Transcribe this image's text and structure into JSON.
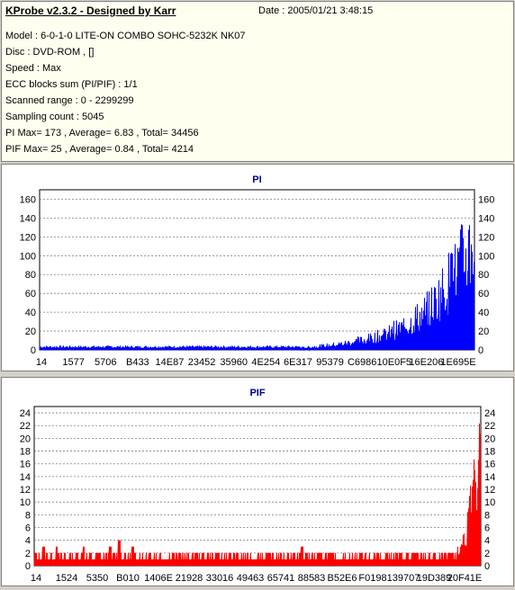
{
  "header": {
    "title": "KProbe v2.3.2 - Designed by Karr",
    "date": "Date : 2005/01/21 3:48:15",
    "lines": [
      "Model : 6-0-1-0 LITE-ON COMBO SOHC-5232K NK07",
      "Disc : DVD-ROM ,  []",
      "Speed : Max",
      "ECC blocks sum (PI/PIF) : 1/1",
      "Scanned range : 0 - 2299299",
      "Sampling count : 5045",
      "PI Max= 173 , Average= 6.83 , Total= 34456",
      "PIF Max= 25 , Average= 0.84 , Total= 4214"
    ]
  },
  "chart_data": [
    {
      "type": "bar",
      "title": "PI",
      "color": "#0000ff",
      "ylim": [
        0,
        170
      ],
      "yticks": [
        0,
        20,
        40,
        60,
        80,
        100,
        120,
        140,
        160
      ],
      "xtick_labels": [
        "14",
        "1577",
        "5706",
        "B433",
        "14E87",
        "23452",
        "35960",
        "4E254",
        "6E317",
        "95379",
        "C6986",
        "10E0F5",
        "16E206",
        "1E695E"
      ],
      "x_range": [
        0,
        2299299
      ],
      "baseline_until": 0.6,
      "baseline_value": 2,
      "envelope": [
        [
          0.6,
          3
        ],
        [
          0.65,
          6
        ],
        [
          0.7,
          10
        ],
        [
          0.75,
          16
        ],
        [
          0.8,
          25
        ],
        [
          0.85,
          40
        ],
        [
          0.88,
          55
        ],
        [
          0.91,
          75
        ],
        [
          0.94,
          105
        ],
        [
          0.97,
          135
        ],
        [
          1.0,
          173
        ]
      ],
      "max": 173
    },
    {
      "type": "bar",
      "title": "PIF",
      "color": "#ff0000",
      "ylim": [
        0,
        25
      ],
      "yticks": [
        0,
        2,
        4,
        6,
        8,
        10,
        12,
        14,
        16,
        18,
        20,
        22,
        24
      ],
      "xtick_labels": [
        "14",
        "1524",
        "5350",
        "B010",
        "1406E",
        "21928",
        "33016",
        "49463",
        "65741",
        "88583",
        "B52E6",
        "F0198",
        "139707",
        "19D389",
        "20F41E"
      ],
      "x_range": [
        0,
        2299299
      ],
      "baseline_value": 1,
      "spikes": [
        [
          0.02,
          3
        ],
        [
          0.05,
          3
        ],
        [
          0.08,
          2
        ],
        [
          0.11,
          3
        ],
        [
          0.14,
          2
        ],
        [
          0.17,
          3
        ],
        [
          0.19,
          4
        ],
        [
          0.22,
          3
        ],
        [
          0.26,
          2
        ],
        [
          0.31,
          2
        ],
        [
          0.36,
          2
        ],
        [
          0.41,
          2
        ],
        [
          0.52,
          2
        ],
        [
          0.6,
          3
        ],
        [
          0.66,
          2
        ],
        [
          0.73,
          2
        ],
        [
          0.79,
          2
        ],
        [
          0.86,
          2
        ],
        [
          0.92,
          2
        ],
        [
          0.95,
          3
        ],
        [
          0.97,
          8
        ],
        [
          0.98,
          14
        ],
        [
          0.99,
          19
        ],
        [
          1.0,
          25
        ]
      ],
      "max": 25
    }
  ]
}
